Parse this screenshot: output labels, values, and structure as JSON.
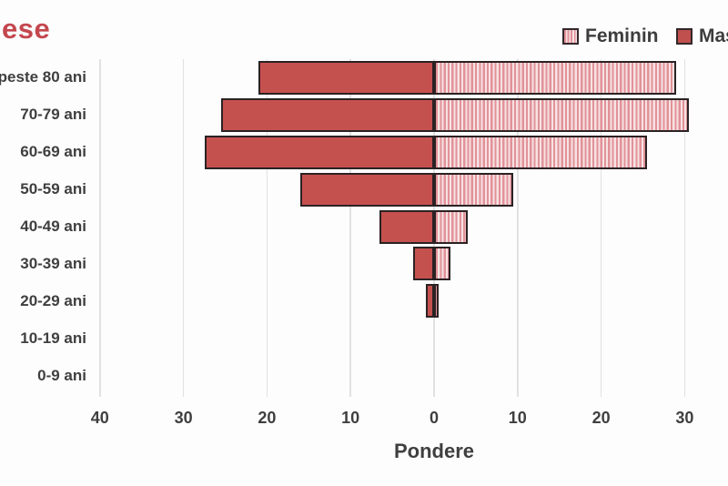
{
  "title_fragment": "ese",
  "legend": {
    "items": [
      {
        "label": "Feminin",
        "swatch": "striped-pink"
      },
      {
        "label": "Masculin",
        "swatch": "solid-red"
      }
    ]
  },
  "chart_data": {
    "type": "bar",
    "subtype": "population-pyramid",
    "orientation": "horizontal",
    "xlabel": "Pondere",
    "categories": [
      "peste 80 ani",
      "70-79 ani",
      "60-69 ani",
      "50-59 ani",
      "40-49 ani",
      "30-39 ani",
      "20-29 ani",
      "10-19 ani",
      "0-9 ani"
    ],
    "series": [
      {
        "name": "Masculin",
        "side": "left",
        "style": "solid",
        "values": [
          21,
          25.5,
          27.5,
          16,
          6.5,
          2.5,
          1,
          0,
          0
        ]
      },
      {
        "name": "Feminin",
        "side": "right",
        "style": "striped",
        "values": [
          29,
          30.5,
          25.5,
          9.5,
          4,
          2,
          0.5,
          0,
          0
        ]
      }
    ],
    "tick_labels": [
      "40",
      "30",
      "20",
      "10",
      "0",
      "10",
      "20",
      "30"
    ],
    "tick_values": [
      -40,
      -30,
      -20,
      -10,
      0,
      10,
      20,
      30
    ],
    "xlim": [
      -40,
      35
    ],
    "grid": true,
    "legend_position": "top-right",
    "colors": {
      "masculin": "#c5514f",
      "feminin_stripe": "#e19298",
      "feminin_light": "#f7e2e3",
      "bar_border": "#2b2224",
      "gridline": "#e1e1e1",
      "axis_text": "#3f3f3f",
      "title": "#c4474f"
    }
  }
}
